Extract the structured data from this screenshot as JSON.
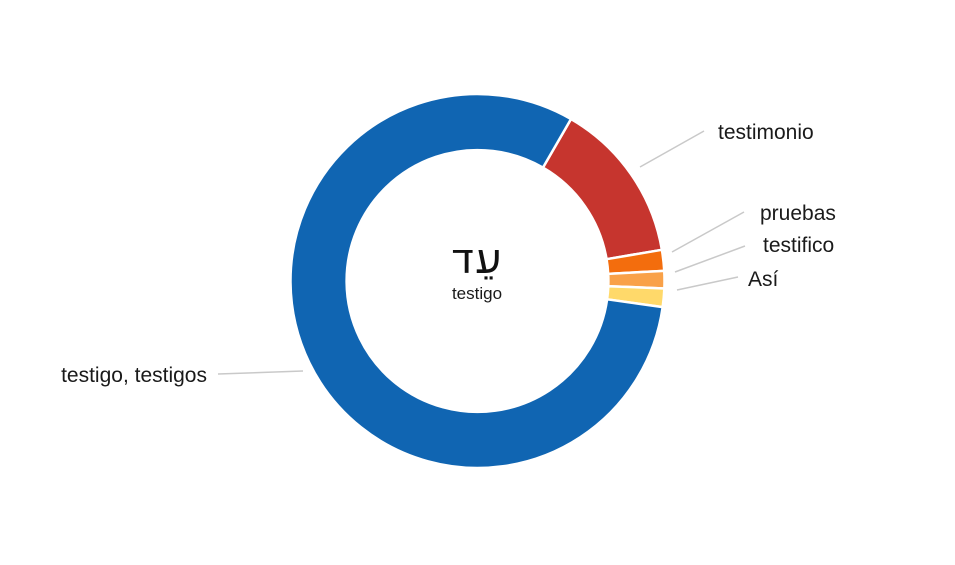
{
  "chart_data": {
    "type": "donut",
    "title": "",
    "center_label": {
      "hebrew_lemma": "עֵד",
      "gloss": "testigo"
    },
    "segments": [
      {
        "label": "testimonio",
        "percent": 14.0,
        "color": "#C6352E"
      },
      {
        "label": "pruebas",
        "percent": 1.8,
        "color": "#F36D0D"
      },
      {
        "label": "testifico",
        "percent": 1.5,
        "color": "#F9A148"
      },
      {
        "label": "Así",
        "percent": 1.6,
        "color": "#FFD96A"
      },
      {
        "label": "testigo, testigos",
        "percent": 81.1,
        "color": "#1065B2"
      }
    ],
    "start_angle_deg": 30,
    "clockwise": true,
    "inner_radius_ratio": 0.7,
    "slice_separator_color": "#FFFFFF",
    "leader_line_color": "#C9C9C9",
    "label_text_color": "#1A1A1A",
    "background": "#FFFFFF",
    "legend_position": "callout-labels"
  }
}
